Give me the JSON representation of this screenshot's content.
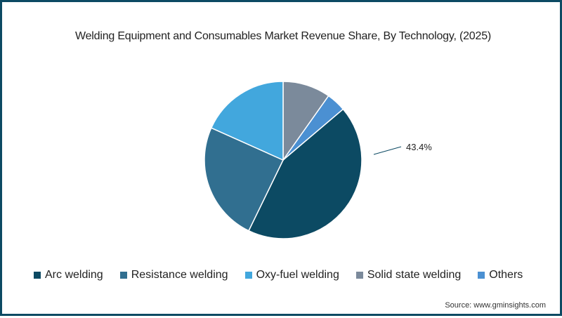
{
  "chart_data": {
    "type": "pie",
    "title": "Welding Equipment and Consumables Market Revenue Share, By Technology, (2025)",
    "categories": [
      "Arc welding",
      "Resistance welding",
      "Oxy-fuel welding",
      "Solid state welding",
      "Others"
    ],
    "values": [
      43.4,
      24.5,
      18.3,
      9.8,
      4.0
    ],
    "colors": [
      "#0c4a63",
      "#316f90",
      "#42a7dd",
      "#7b8a9b",
      "#4b90d2"
    ],
    "data_labels": [
      {
        "category": "Arc welding",
        "text": "43.4%"
      }
    ],
    "legend_position": "bottom",
    "unit": "%"
  },
  "header": {
    "title": "Welding Equipment and Consumables Market Revenue Share, By Technology, (2025)"
  },
  "label": {
    "arc": "43.4%"
  },
  "legend": {
    "items": [
      {
        "label": "Arc welding",
        "color": "#0c4a63"
      },
      {
        "label": "Resistance welding",
        "color": "#316f90"
      },
      {
        "label": "Oxy-fuel welding",
        "color": "#42a7dd"
      },
      {
        "label": "Solid state welding",
        "color": "#7b8a9b"
      },
      {
        "label": "Others",
        "color": "#4b90d2"
      }
    ]
  },
  "footer": {
    "source": "Source: www.gminsights.com"
  }
}
